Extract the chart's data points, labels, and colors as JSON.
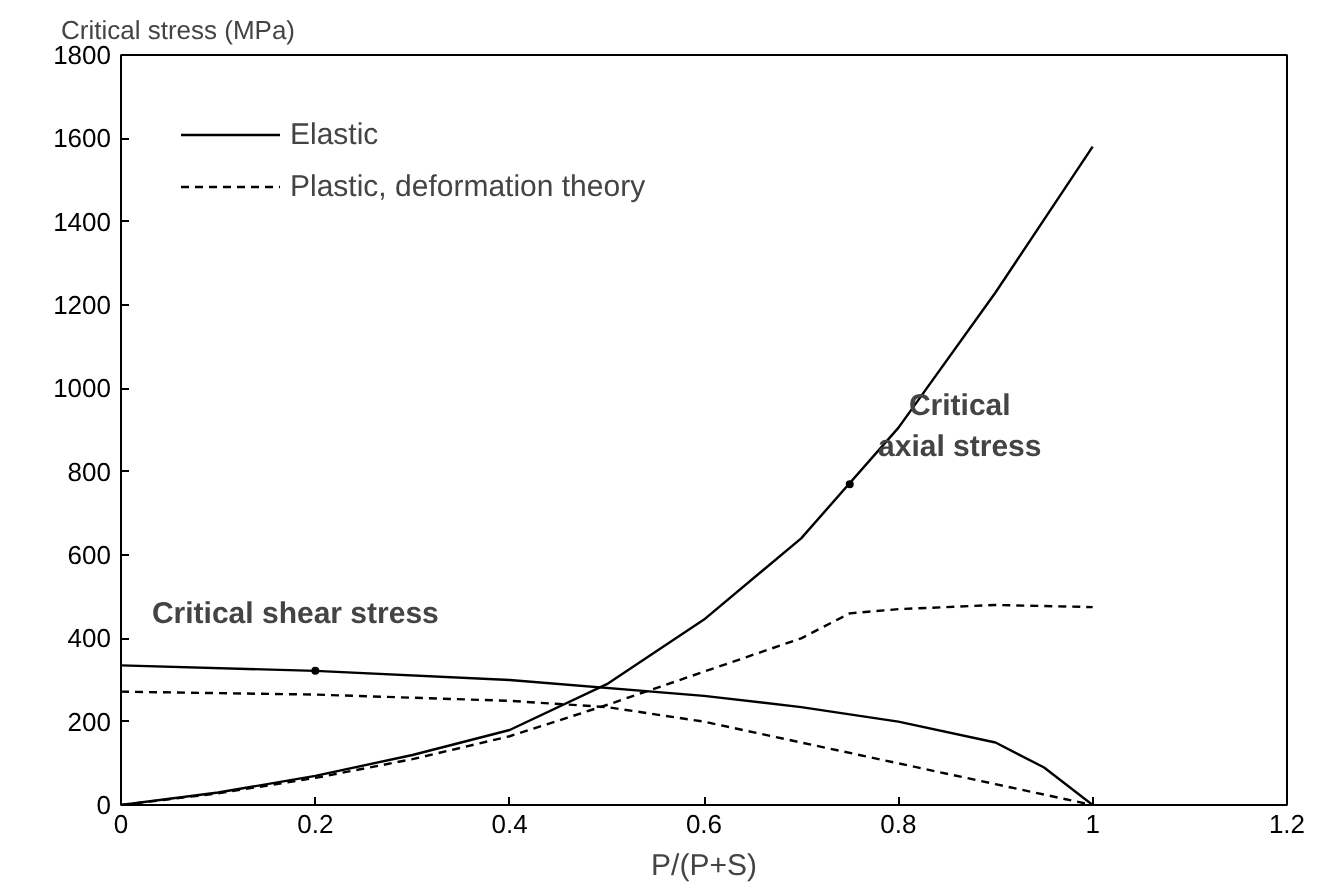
{
  "chart_data": {
    "type": "line",
    "xlabel": "P/(P+S)",
    "ylabel": "Critical stress (MPa)",
    "xlim": [
      0,
      1.2
    ],
    "ylim": [
      0,
      1800
    ],
    "xticks": [
      0,
      0.2,
      0.4,
      0.6,
      0.8,
      1,
      1.2
    ],
    "yticks": [
      0,
      200,
      400,
      600,
      800,
      1000,
      1200,
      1400,
      1600,
      1800
    ],
    "grid": false,
    "legend": "top left",
    "marker": "none",
    "series": [
      {
        "name": "Elastic",
        "color": "#000000",
        "line_style": "solid",
        "x": [
          0,
          0.1,
          0.2,
          0.3,
          0.4,
          0.5,
          0.6,
          0.7,
          0.8,
          0.9,
          1.0
        ],
        "values": [
          0,
          30,
          70,
          120,
          180,
          290,
          445,
          640,
          905,
          1230,
          1580
        ]
      },
      {
        "name": "Plastic, deformation theory",
        "color": "#000000",
        "line_style": "dashed",
        "x": [
          0,
          0.1,
          0.2,
          0.3,
          0.4,
          0.5,
          0.6,
          0.7,
          0.75,
          0.8,
          0.9,
          1.0
        ],
        "values": [
          0,
          28,
          65,
          110,
          165,
          240,
          320,
          400,
          460,
          470,
          480,
          475
        ]
      },
      {
        "color": "#000000",
        "line_style": "solid",
        "x": [
          0,
          0.2,
          0.4,
          0.6,
          0.7,
          0.8,
          0.9,
          0.95,
          1.0
        ],
        "values": [
          335,
          322,
          300,
          262,
          235,
          200,
          150,
          90,
          0
        ]
      },
      {
        "color": "#000000",
        "line_style": "dashed",
        "x": [
          0,
          0.2,
          0.4,
          0.5,
          0.6,
          0.7,
          0.8,
          0.9,
          1.0
        ],
        "values": [
          272,
          265,
          250,
          235,
          200,
          150,
          100,
          50,
          0
        ]
      }
    ],
    "annotations": [
      {
        "text": "Critical shear stress",
        "x": 0.2,
        "y": 322
      },
      {
        "text": "Critical\naxial stress",
        "x": 0.75,
        "y": 770
      }
    ]
  }
}
